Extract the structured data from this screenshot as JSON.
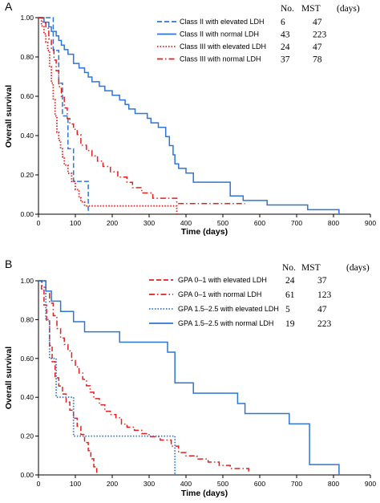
{
  "chart_data": [
    {
      "type": "line",
      "panel_label": "A",
      "xlabel": "Time (days)",
      "ylabel": "Overall survival",
      "xlim": [
        0,
        900
      ],
      "ylim": [
        0,
        1.0
      ],
      "x_ticks": [
        0,
        100,
        200,
        300,
        400,
        500,
        600,
        700,
        800,
        900
      ],
      "y_ticks": [
        "0.00",
        "0.20",
        "0.40",
        "0.60",
        "0.80",
        "1.00"
      ],
      "legend_position": "top-right",
      "table_headers": [
        "No.",
        "MST",
        "(days)"
      ],
      "series": [
        {
          "name": "Class II with elevated LDH",
          "color": "#2e75d6",
          "dash": "dash",
          "no": "6",
          "mst": "47",
          "x": [
            0,
            20,
            40,
            55,
            65,
            80,
            95,
            110,
            135
          ],
          "y": [
            1.0,
            1.0,
            0.833,
            0.667,
            0.5,
            0.333,
            0.167,
            0.167,
            0.0
          ]
        },
        {
          "name": "Class II with normal LDH",
          "color": "#2e75d6",
          "dash": "solid",
          "no": "43",
          "mst": "223",
          "x": [
            0,
            15,
            28,
            35,
            48,
            55,
            62,
            70,
            80,
            95,
            110,
            125,
            135,
            145,
            165,
            180,
            200,
            220,
            235,
            245,
            262,
            295,
            305,
            325,
            345,
            355,
            365,
            370,
            380,
            400,
            420,
            520,
            555,
            620,
            730,
            815
          ],
          "y": [
            1.0,
            0.977,
            0.953,
            0.93,
            0.907,
            0.884,
            0.86,
            0.837,
            0.814,
            0.767,
            0.744,
            0.721,
            0.698,
            0.674,
            0.651,
            0.628,
            0.605,
            0.581,
            0.558,
            0.535,
            0.512,
            0.488,
            0.465,
            0.442,
            0.395,
            0.349,
            0.302,
            0.256,
            0.233,
            0.209,
            0.163,
            0.093,
            0.07,
            0.047,
            0.023,
            0.0
          ]
        },
        {
          "name": "Class III with elevated LDH",
          "color": "#e0201f",
          "dash": "dot",
          "no": "24",
          "mst": "47",
          "x": [
            0,
            8,
            15,
            20,
            25,
            30,
            35,
            40,
            45,
            50,
            55,
            60,
            65,
            70,
            80,
            90,
            100,
            110,
            115,
            125,
            135,
            375
          ],
          "y": [
            1.0,
            0.958,
            0.917,
            0.875,
            0.833,
            0.75,
            0.667,
            0.583,
            0.5,
            0.417,
            0.375,
            0.333,
            0.292,
            0.25,
            0.208,
            0.167,
            0.125,
            0.083,
            0.063,
            0.042,
            0.042,
            0.0
          ]
        },
        {
          "name": "Class III with normal LDH",
          "color": "#e0201f",
          "dash": "dashdot",
          "no": "37",
          "mst": "78",
          "x": [
            0,
            12,
            20,
            28,
            35,
            42,
            48,
            55,
            62,
            70,
            78,
            85,
            95,
            105,
            115,
            130,
            145,
            160,
            175,
            195,
            215,
            240,
            255,
            280,
            310,
            375,
            560
          ],
          "y": [
            1.0,
            0.973,
            0.946,
            0.892,
            0.838,
            0.784,
            0.73,
            0.649,
            0.595,
            0.541,
            0.486,
            0.459,
            0.432,
            0.405,
            0.351,
            0.324,
            0.297,
            0.27,
            0.243,
            0.216,
            0.189,
            0.162,
            0.135,
            0.108,
            0.081,
            0.054,
            0.054
          ]
        }
      ]
    },
    {
      "type": "line",
      "panel_label": "B",
      "xlabel": "Time (days)",
      "ylabel": "Overall survival",
      "xlim": [
        0,
        900
      ],
      "ylim": [
        0,
        1.0
      ],
      "x_ticks": [
        0,
        100,
        200,
        300,
        400,
        500,
        600,
        700,
        800,
        900
      ],
      "y_ticks": [
        "0.00",
        "0.20",
        "0.40",
        "0.60",
        "0.80",
        "1.00"
      ],
      "legend_position": "top-right",
      "table_headers": [
        "No.",
        "MST",
        "(days)"
      ],
      "series": [
        {
          "name": "GPA 0–1 with elevated LDH",
          "color": "#e0201f",
          "dash": "dash",
          "no": "24",
          "mst": "37",
          "x": [
            0,
            8,
            15,
            22,
            30,
            37,
            45,
            55,
            65,
            75,
            85,
            95,
            105,
            115,
            125,
            135,
            142,
            150,
            158
          ],
          "y": [
            1.0,
            0.958,
            0.875,
            0.792,
            0.667,
            0.583,
            0.5,
            0.458,
            0.417,
            0.375,
            0.333,
            0.292,
            0.25,
            0.208,
            0.167,
            0.125,
            0.083,
            0.042,
            0.0
          ]
        },
        {
          "name": "GPA 0–1 with normal LDH",
          "color": "#e0201f",
          "dash": "dashdot",
          "no": "61",
          "mst": "123",
          "x": [
            0,
            10,
            20,
            30,
            40,
            50,
            60,
            70,
            80,
            90,
            100,
            110,
            120,
            130,
            140,
            150,
            165,
            180,
            195,
            210,
            225,
            240,
            260,
            280,
            300,
            330,
            360,
            380,
            400,
            430,
            460,
            490,
            520,
            570
          ],
          "y": [
            1.0,
            0.967,
            0.934,
            0.885,
            0.82,
            0.754,
            0.705,
            0.672,
            0.639,
            0.59,
            0.557,
            0.525,
            0.492,
            0.459,
            0.426,
            0.393,
            0.361,
            0.328,
            0.311,
            0.295,
            0.262,
            0.246,
            0.23,
            0.213,
            0.197,
            0.18,
            0.148,
            0.115,
            0.098,
            0.082,
            0.066,
            0.049,
            0.033,
            0.016
          ]
        },
        {
          "name": "GPA 1.5–2.5 with elevated LDH",
          "color": "#2e75d6",
          "dash": "dot",
          "no": "5",
          "mst": "47",
          "x": [
            0,
            20,
            30,
            48,
            95,
            370,
            380
          ],
          "y": [
            1.0,
            0.8,
            0.6,
            0.4,
            0.2,
            0.0,
            0.0
          ]
        },
        {
          "name": "GPA 1.5–2.5 with normal LDH",
          "color": "#2e75d6",
          "dash": "solid",
          "no": "19",
          "mst": "223",
          "x": [
            0,
            20,
            35,
            60,
            95,
            125,
            220,
            350,
            370,
            420,
            540,
            560,
            680,
            735,
            815
          ],
          "y": [
            1.0,
            0.947,
            0.895,
            0.842,
            0.789,
            0.737,
            0.684,
            0.632,
            0.474,
            0.421,
            0.368,
            0.316,
            0.263,
            0.053,
            0.0
          ]
        }
      ]
    }
  ]
}
